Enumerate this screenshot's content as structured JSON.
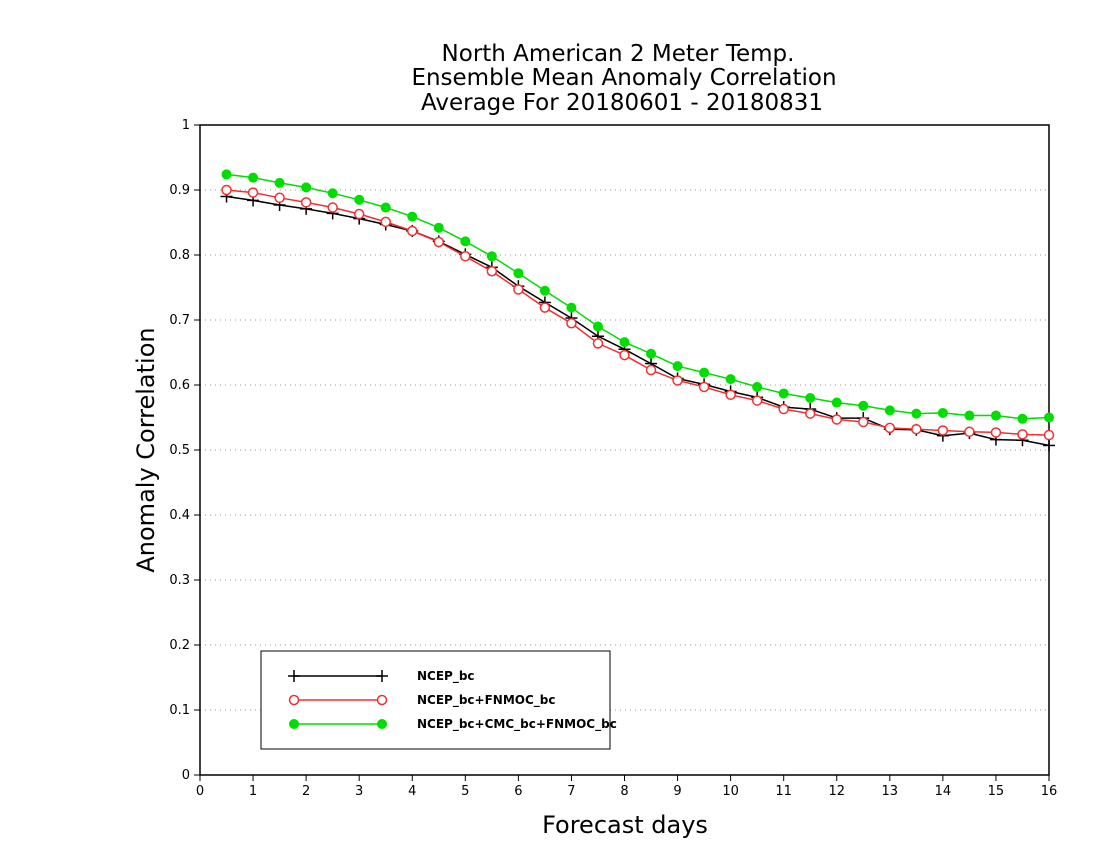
{
  "chart_data": {
    "type": "line",
    "title_lines": [
      "North American 2 Meter Temp.",
      "Ensemble Mean Anomaly Correlation",
      "Average For 20180601 - 20180831"
    ],
    "xlabel": "Forecast days",
    "ylabel": "Anomaly Correlation",
    "xlim": [
      0,
      16
    ],
    "ylim": [
      0,
      1
    ],
    "xticks": [
      "0",
      "1",
      "2",
      "3",
      "4",
      "5",
      "6",
      "7",
      "8",
      "9",
      "10",
      "11",
      "12",
      "13",
      "14",
      "15",
      "16"
    ],
    "yticks": [
      "0",
      "0.1",
      "0.2",
      "0.3",
      "0.4",
      "0.5",
      "0.6",
      "0.7",
      "0.8",
      "0.9",
      "1"
    ],
    "grid": "horizontal-dotted",
    "legend_position": "bottom-left",
    "x": [
      0.5,
      1,
      1.5,
      2,
      2.5,
      3,
      3.5,
      4,
      4.5,
      5,
      5.5,
      6,
      6.5,
      7,
      7.5,
      8,
      8.5,
      9,
      9.5,
      10,
      10.5,
      11,
      11.5,
      12,
      12.5,
      13,
      13.5,
      14,
      14.5,
      15,
      15.5,
      16
    ],
    "series": [
      {
        "name": "NCEP_bc",
        "color": "#000000",
        "marker": "plus",
        "values": [
          0.89,
          0.884,
          0.877,
          0.871,
          0.864,
          0.856,
          0.847,
          0.837,
          0.821,
          0.801,
          0.781,
          0.752,
          0.727,
          0.703,
          0.675,
          0.655,
          0.633,
          0.61,
          0.601,
          0.59,
          0.581,
          0.566,
          0.563,
          0.549,
          0.549,
          0.532,
          0.531,
          0.522,
          0.526,
          0.516,
          0.515,
          0.507
        ]
      },
      {
        "name": "NCEP_bc+FNMOC_bc",
        "color": "#f03030",
        "marker": "open-circle",
        "values": [
          0.9,
          0.896,
          0.888,
          0.881,
          0.873,
          0.863,
          0.851,
          0.837,
          0.82,
          0.798,
          0.775,
          0.747,
          0.719,
          0.695,
          0.664,
          0.646,
          0.623,
          0.607,
          0.597,
          0.585,
          0.576,
          0.563,
          0.556,
          0.547,
          0.543,
          0.534,
          0.532,
          0.53,
          0.528,
          0.527,
          0.524,
          0.523
        ]
      },
      {
        "name": "NCEP_bc+CMC_bc+FNMOC_bc",
        "color": "#00dd00",
        "marker": "filled-circle",
        "values": [
          0.924,
          0.919,
          0.911,
          0.904,
          0.895,
          0.885,
          0.873,
          0.859,
          0.842,
          0.821,
          0.798,
          0.772,
          0.745,
          0.719,
          0.69,
          0.666,
          0.648,
          0.629,
          0.619,
          0.609,
          0.597,
          0.587,
          0.58,
          0.573,
          0.568,
          0.561,
          0.556,
          0.557,
          0.553,
          0.553,
          0.548,
          0.55
        ]
      }
    ]
  }
}
